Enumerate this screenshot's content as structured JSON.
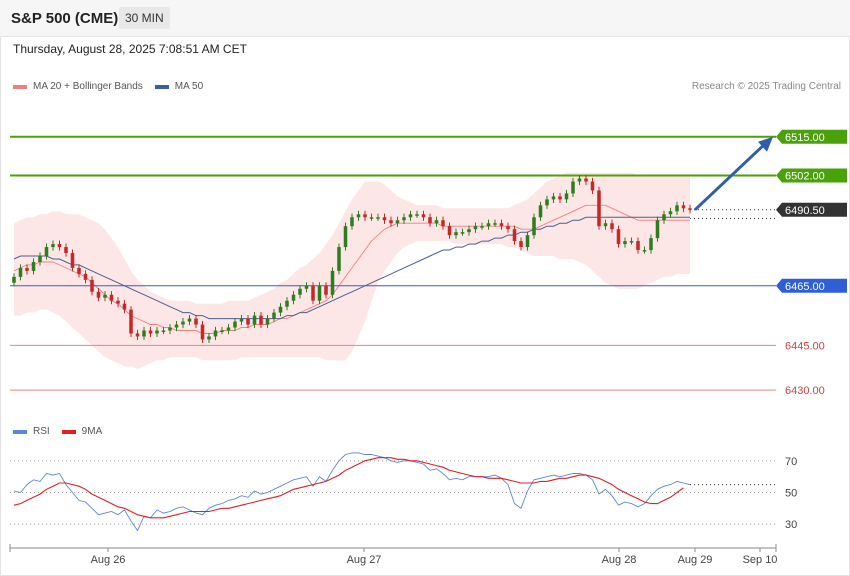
{
  "header": {
    "title": "S&P 500 (CME)",
    "interval": "30 MIN",
    "timestamp": "Thursday, August 28, 2025 7:08:51 AM CET"
  },
  "credit": "Research © 2025 Trading Central",
  "legend_main": [
    {
      "label": "MA 20 + Bollinger Bands",
      "color": "#f08080"
    },
    {
      "label": "MA 50",
      "color": "#3a5fa0"
    }
  ],
  "legend_rsi": [
    {
      "label": "RSI",
      "color": "#5b86d9"
    },
    {
      "label": "9MA",
      "color": "#e02020"
    }
  ],
  "colors": {
    "bull": "#2e7d1e",
    "bear": "#c62828",
    "resistance": "#4aa10a",
    "pivot": "#2f5fd6",
    "support": "#f08080",
    "current": "#333333",
    "arrow": "#2f5fa8",
    "bollinger_fill": "#fde3e3",
    "ma20": "#f08080",
    "ma50": "#4a5f90"
  },
  "chart_data": {
    "type": "candlestick",
    "ylim": [
      6425,
      6525
    ],
    "x_labels": [
      "Aug 26",
      "Aug 27",
      "Aug 28",
      "Aug 29",
      "Sep 10"
    ],
    "levels": [
      {
        "value": 6515.0,
        "label": "6515.00",
        "kind": "resistance"
      },
      {
        "value": 6502.0,
        "label": "6502.00",
        "kind": "resistance"
      },
      {
        "value": 6490.5,
        "label": "6490.50",
        "kind": "current"
      },
      {
        "value": 6465.0,
        "label": "6465.00",
        "kind": "pivot"
      },
      {
        "value": 6445.0,
        "label": "6445.00",
        "kind": "support"
      },
      {
        "value": 6430.0,
        "label": "6430.00",
        "kind": "support"
      }
    ],
    "candles_close": [
      6468,
      6471,
      6470,
      6473,
      6475,
      6478,
      6479,
      6478,
      6476,
      6471,
      6469,
      6467,
      6463,
      6461,
      6462,
      6460,
      6459,
      6457,
      6449,
      6448,
      6450,
      6449,
      6450,
      6450,
      6451,
      6452,
      6453,
      6454,
      6452,
      6447,
      6448,
      6450,
      6450,
      6451,
      6453,
      6454,
      6452,
      6455,
      6452,
      6454,
      6456,
      6458,
      6460,
      6462,
      6464,
      6465,
      6460,
      6465,
      6462,
      6470,
      6478,
      6485,
      6488,
      6489,
      6488,
      6488,
      6488,
      6487,
      6486,
      6487,
      6488,
      6489,
      6489,
      6488,
      6486,
      6487,
      6485,
      6482,
      6483,
      6483,
      6484,
      6485,
      6485,
      6486,
      6486,
      6485,
      6484,
      6480,
      6478,
      6482,
      6488,
      6492,
      6494,
      6495,
      6494,
      6496,
      6500,
      6501,
      6500,
      6497,
      6485,
      6486,
      6484,
      6479,
      6480,
      6480,
      6477,
      6477,
      6481,
      6487,
      6489,
      6490,
      6492,
      6491,
      6490.5
    ],
    "ma20": [
      6470,
      6471,
      6472,
      6472,
      6473,
      6473,
      6473,
      6472,
      6471,
      6470,
      6469,
      6468,
      6466,
      6464,
      6462,
      6460,
      6459,
      6457,
      6455,
      6454,
      6453,
      6452,
      6452,
      6451,
      6451,
      6450,
      6450,
      6450,
      6450,
      6449,
      6449,
      6449,
      6450,
      6450,
      6450,
      6451,
      6451,
      6452,
      6452,
      6452,
      6453,
      6454,
      6454,
      6455,
      6456,
      6457,
      6458,
      6459,
      6460,
      6462,
      6465,
      6468,
      6471,
      6474,
      6477,
      6480,
      6482,
      6484,
      6485,
      6486,
      6486,
      6486,
      6486,
      6486,
      6486,
      6486,
      6485,
      6485,
      6485,
      6485,
      6485,
      6485,
      6485,
      6485,
      6485,
      6485,
      6485,
      6485,
      6484,
      6484,
      6484,
      6485,
      6486,
      6487,
      6488,
      6489,
      6490,
      6491,
      6492,
      6492,
      6492,
      6492,
      6491,
      6490,
      6489,
      6488,
      6487,
      6487,
      6487,
      6487,
      6487,
      6487,
      6487,
      6487,
      6487
    ],
    "ma50": [
      6474,
      6475,
      6475,
      6475,
      6475,
      6475,
      6474,
      6474,
      6473,
      6472,
      6472,
      6471,
      6470,
      6469,
      6468,
      6467,
      6466,
      6465,
      6464,
      6463,
      6462,
      6461,
      6460,
      6459,
      6458,
      6457,
      6456,
      6456,
      6455,
      6455,
      6454,
      6454,
      6454,
      6454,
      6454,
      6454,
      6454,
      6454,
      6454,
      6454,
      6454,
      6454,
      6455,
      6455,
      6456,
      6456,
      6457,
      6458,
      6459,
      6460,
      6461,
      6462,
      6463,
      6464,
      6465,
      6466,
      6467,
      6468,
      6469,
      6470,
      6471,
      6472,
      6473,
      6474,
      6475,
      6476,
      6477,
      6477,
      6478,
      6478,
      6479,
      6479,
      6480,
      6480,
      6481,
      6481,
      6482,
      6482,
      6483,
      6483,
      6484,
      6484,
      6485,
      6485,
      6486,
      6486,
      6487,
      6487,
      6488,
      6488,
      6488,
      6488,
      6488,
      6488,
      6488,
      6488,
      6488,
      6488,
      6488,
      6488,
      6488,
      6488,
      6488,
      6488,
      6488
    ],
    "bb_upper": [
      6486,
      6487,
      6488,
      6488,
      6489,
      6489,
      6490,
      6490,
      6489,
      6489,
      6489,
      6488,
      6487,
      6486,
      6484,
      6481,
      6478,
      6474,
      6470,
      6467,
      6465,
      6463,
      6462,
      6461,
      6460,
      6460,
      6460,
      6460,
      6459,
      6459,
      6459,
      6459,
      6459,
      6460,
      6460,
      6460,
      6460,
      6461,
      6462,
      6463,
      6464,
      6466,
      6467,
      6469,
      6471,
      6472,
      6474,
      6476,
      6479,
      6482,
      6486,
      6490,
      6494,
      6497,
      6500,
      6500,
      6500,
      6499,
      6497,
      6495,
      6494,
      6493,
      6492,
      6492,
      6492,
      6492,
      6491,
      6491,
      6491,
      6491,
      6491,
      6491,
      6491,
      6491,
      6491,
      6491,
      6491,
      6492,
      6493,
      6494,
      6496,
      6498,
      6500,
      6501,
      6502,
      6503,
      6503,
      6503,
      6503,
      6503,
      6503,
      6503,
      6503,
      6503,
      6503,
      6503,
      6502,
      6502,
      6502,
      6502,
      6502,
      6502,
      6502,
      6502,
      6502
    ],
    "bb_lower": [
      6455,
      6455,
      6456,
      6456,
      6457,
      6457,
      6456,
      6455,
      6453,
      6451,
      6449,
      6447,
      6445,
      6443,
      6441,
      6440,
      6439,
      6438,
      6438,
      6437,
      6438,
      6439,
      6440,
      6440,
      6441,
      6441,
      6441,
      6441,
      6441,
      6440,
      6440,
      6440,
      6440,
      6440,
      6440,
      6441,
      6441,
      6441,
      6441,
      6441,
      6441,
      6441,
      6441,
      6441,
      6441,
      6441,
      6441,
      6441,
      6440,
      6440,
      6440,
      6440,
      6443,
      6448,
      6453,
      6460,
      6466,
      6470,
      6473,
      6476,
      6478,
      6479,
      6480,
      6480,
      6480,
      6480,
      6480,
      6480,
      6479,
      6479,
      6479,
      6479,
      6479,
      6479,
      6479,
      6479,
      6478,
      6478,
      6477,
      6476,
      6475,
      6475,
      6475,
      6475,
      6474,
      6474,
      6474,
      6473,
      6472,
      6470,
      6468,
      6466,
      6465,
      6464,
      6464,
      6464,
      6464,
      6465,
      6466,
      6467,
      6468,
      6468,
      6469,
      6469,
      6469
    ],
    "rsi": {
      "ylim": [
        20,
        80
      ],
      "ticks": [
        70,
        50,
        30
      ],
      "series": [
        {
          "name": "RSI",
          "values": [
            51,
            50,
            55,
            58,
            57,
            62,
            61,
            62,
            55,
            50,
            45,
            44,
            40,
            36,
            37,
            38,
            36,
            39,
            32,
            26,
            35,
            34,
            39,
            37,
            38,
            40,
            41,
            39,
            37,
            36,
            40,
            42,
            43,
            45,
            46,
            48,
            47,
            51,
            49,
            50,
            52,
            54,
            56,
            58,
            59,
            60,
            54,
            60,
            57,
            64,
            70,
            74,
            75,
            75,
            74,
            74,
            73,
            72,
            70,
            69,
            70,
            70,
            69,
            68,
            64,
            65,
            62,
            58,
            59,
            58,
            60,
            60,
            60,
            60,
            61,
            59,
            55,
            43,
            40,
            51,
            58,
            59,
            60,
            61,
            60,
            61,
            62,
            62,
            61,
            58,
            49,
            52,
            48,
            42,
            44,
            43,
            41,
            43,
            48,
            52,
            54,
            55,
            57,
            56,
            55
          ]
        },
        {
          "name": "9MA",
          "values": [
            42,
            43,
            45,
            47,
            49,
            52,
            54,
            56,
            56,
            55,
            54,
            52,
            49,
            47,
            45,
            43,
            41,
            40,
            38,
            36,
            35,
            34,
            34,
            34,
            35,
            36,
            37,
            38,
            38,
            38,
            38,
            39,
            40,
            40,
            41,
            42,
            43,
            44,
            45,
            46,
            47,
            48,
            50,
            52,
            53,
            54,
            55,
            56,
            57,
            59,
            61,
            64,
            66,
            68,
            70,
            71,
            72,
            72,
            72,
            71,
            71,
            70,
            70,
            69,
            68,
            67,
            66,
            64,
            63,
            62,
            61,
            60,
            60,
            59,
            59,
            59,
            58,
            57,
            56,
            56,
            56,
            57,
            57,
            58,
            59,
            59,
            60,
            61,
            61,
            60,
            59,
            57,
            55,
            52,
            50,
            48,
            46,
            44,
            43,
            43,
            45,
            47,
            50,
            53,
            null
          ]
        }
      ]
    }
  }
}
